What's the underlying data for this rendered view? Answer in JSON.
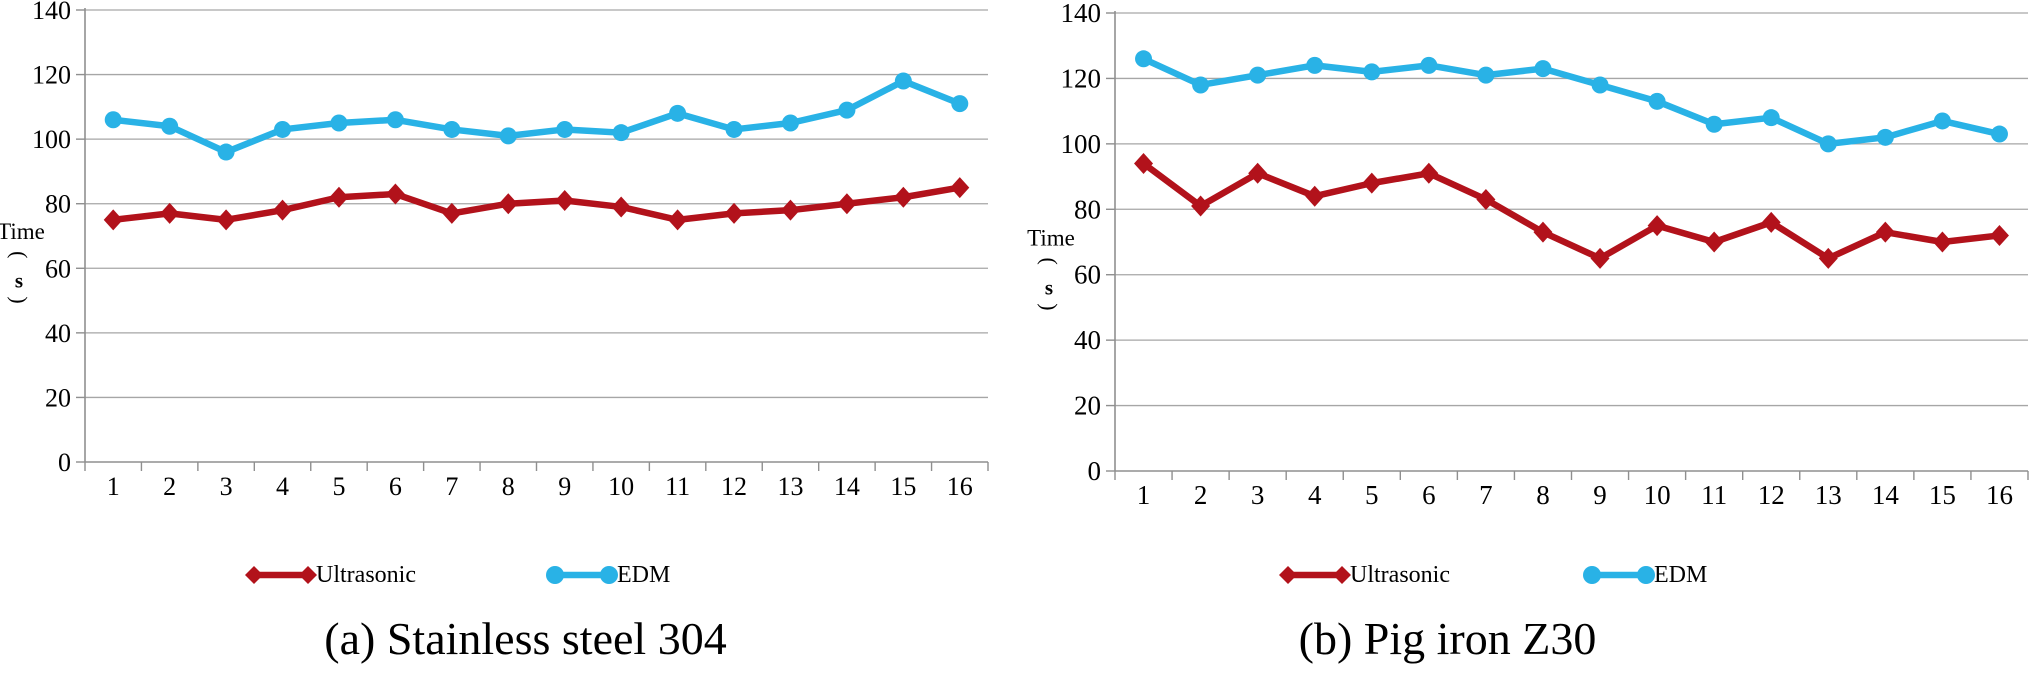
{
  "chart_data": [
    {
      "type": "line",
      "title": "(a) Stainless steel 304",
      "xlabel": "",
      "ylabel": "Time (s)",
      "ylabel_word": "Time",
      "ylabel_unit": "s",
      "x": [
        "1",
        "2",
        "3",
        "4",
        "5",
        "6",
        "7",
        "8",
        "9",
        "10",
        "11",
        "12",
        "13",
        "14",
        "15",
        "16"
      ],
      "ylim": [
        0,
        140
      ],
      "yticks": [
        0,
        20,
        40,
        60,
        80,
        100,
        120,
        140
      ],
      "grid": true,
      "legend_position": "bottom",
      "series": [
        {
          "name": "Ultrasonic",
          "color": "#b2121b",
          "marker": "diamond",
          "values": [
            75,
            77,
            75,
            78,
            82,
            83,
            77,
            80,
            81,
            79,
            75,
            77,
            78,
            80,
            82,
            85
          ]
        },
        {
          "name": "EDM",
          "color": "#29b2e6",
          "marker": "circle",
          "values": [
            106,
            104,
            96,
            103,
            105,
            106,
            103,
            101,
            103,
            102,
            108,
            103,
            105,
            109,
            118,
            111
          ]
        }
      ]
    },
    {
      "type": "line",
      "title": "(b) Pig iron Z30",
      "xlabel": "",
      "ylabel": "Time (s)",
      "ylabel_word": "Time",
      "ylabel_unit": "s",
      "x": [
        "1",
        "2",
        "3",
        "4",
        "5",
        "6",
        "7",
        "8",
        "9",
        "10",
        "11",
        "12",
        "13",
        "14",
        "15",
        "16"
      ],
      "ylim": [
        0,
        140
      ],
      "yticks": [
        0,
        20,
        40,
        60,
        80,
        100,
        120,
        140
      ],
      "grid": true,
      "legend_position": "bottom",
      "series": [
        {
          "name": "Ultrasonic",
          "color": "#b2121b",
          "marker": "diamond",
          "values": [
            94,
            81,
            91,
            84,
            88,
            91,
            83,
            73,
            65,
            75,
            70,
            76,
            65,
            73,
            70,
            72
          ]
        },
        {
          "name": "EDM",
          "color": "#29b2e6",
          "marker": "circle",
          "values": [
            126,
            118,
            121,
            124,
            122,
            124,
            121,
            123,
            118,
            113,
            106,
            108,
            100,
            102,
            107,
            103
          ]
        }
      ]
    }
  ]
}
